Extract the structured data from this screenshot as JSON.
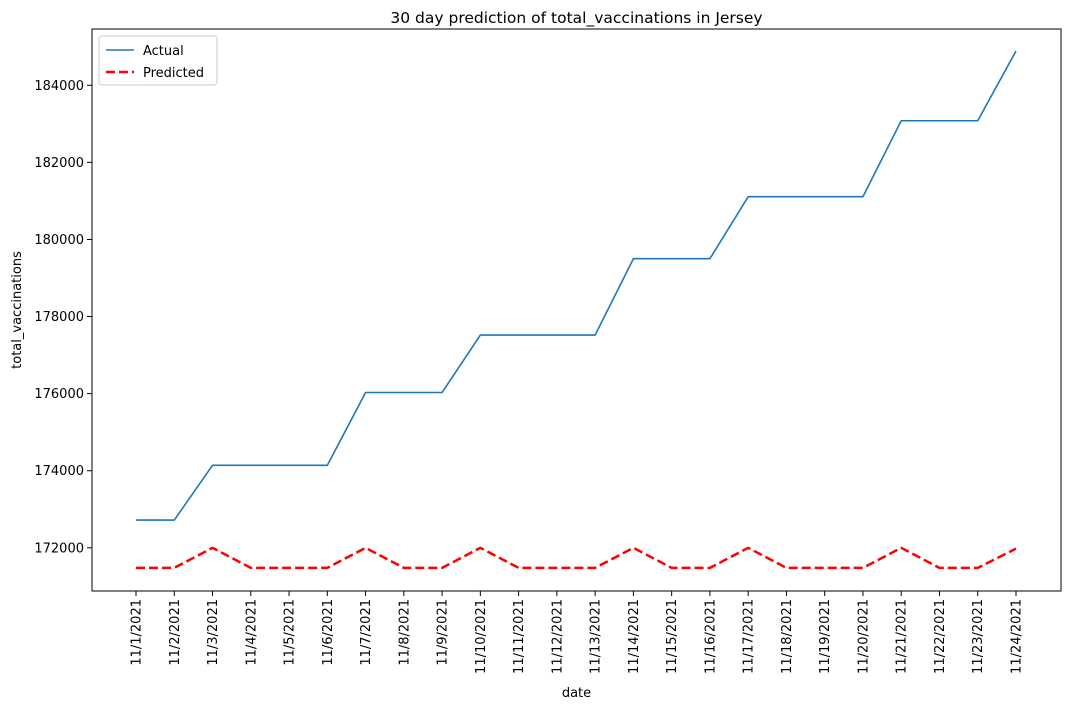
{
  "chart_data": {
    "type": "line",
    "title": "30 day prediction of total_vaccinations in Jersey",
    "xlabel": "date",
    "ylabel": "total_vaccinations",
    "x": [
      "11/1/2021",
      "11/2/2021",
      "11/3/2021",
      "11/4/2021",
      "11/5/2021",
      "11/6/2021",
      "11/7/2021",
      "11/8/2021",
      "11/9/2021",
      "11/10/2021",
      "11/11/2021",
      "11/12/2021",
      "11/13/2021",
      "11/14/2021",
      "11/15/2021",
      "11/16/2021",
      "11/17/2021",
      "11/18/2021",
      "11/19/2021",
      "11/20/2021",
      "11/21/2021",
      "11/22/2021",
      "11/23/2021",
      "11/24/2021"
    ],
    "series": [
      {
        "name": "Actual",
        "color": "#1f77b4",
        "style": "solid",
        "values": [
          172720,
          172720,
          174140,
          174140,
          174140,
          174140,
          176030,
          176030,
          176030,
          177520,
          177520,
          177520,
          177520,
          179500,
          179500,
          179500,
          181110,
          181110,
          181110,
          181110,
          183080,
          183080,
          183080,
          184890
        ]
      },
      {
        "name": "Predicted",
        "color": "#ff0000",
        "style": "dashed",
        "values": [
          171480,
          171480,
          172000,
          171480,
          171480,
          171480,
          172000,
          171480,
          171480,
          172000,
          171480,
          171480,
          171480,
          172000,
          171480,
          171480,
          172000,
          171480,
          171480,
          171480,
          172000,
          171480,
          171480,
          171980
        ]
      }
    ],
    "yticks": [
      172000,
      174000,
      176000,
      178000,
      180000,
      182000,
      184000
    ],
    "ylim": [
      170880,
      185460
    ],
    "grid": false,
    "legend_position": "top-left"
  }
}
